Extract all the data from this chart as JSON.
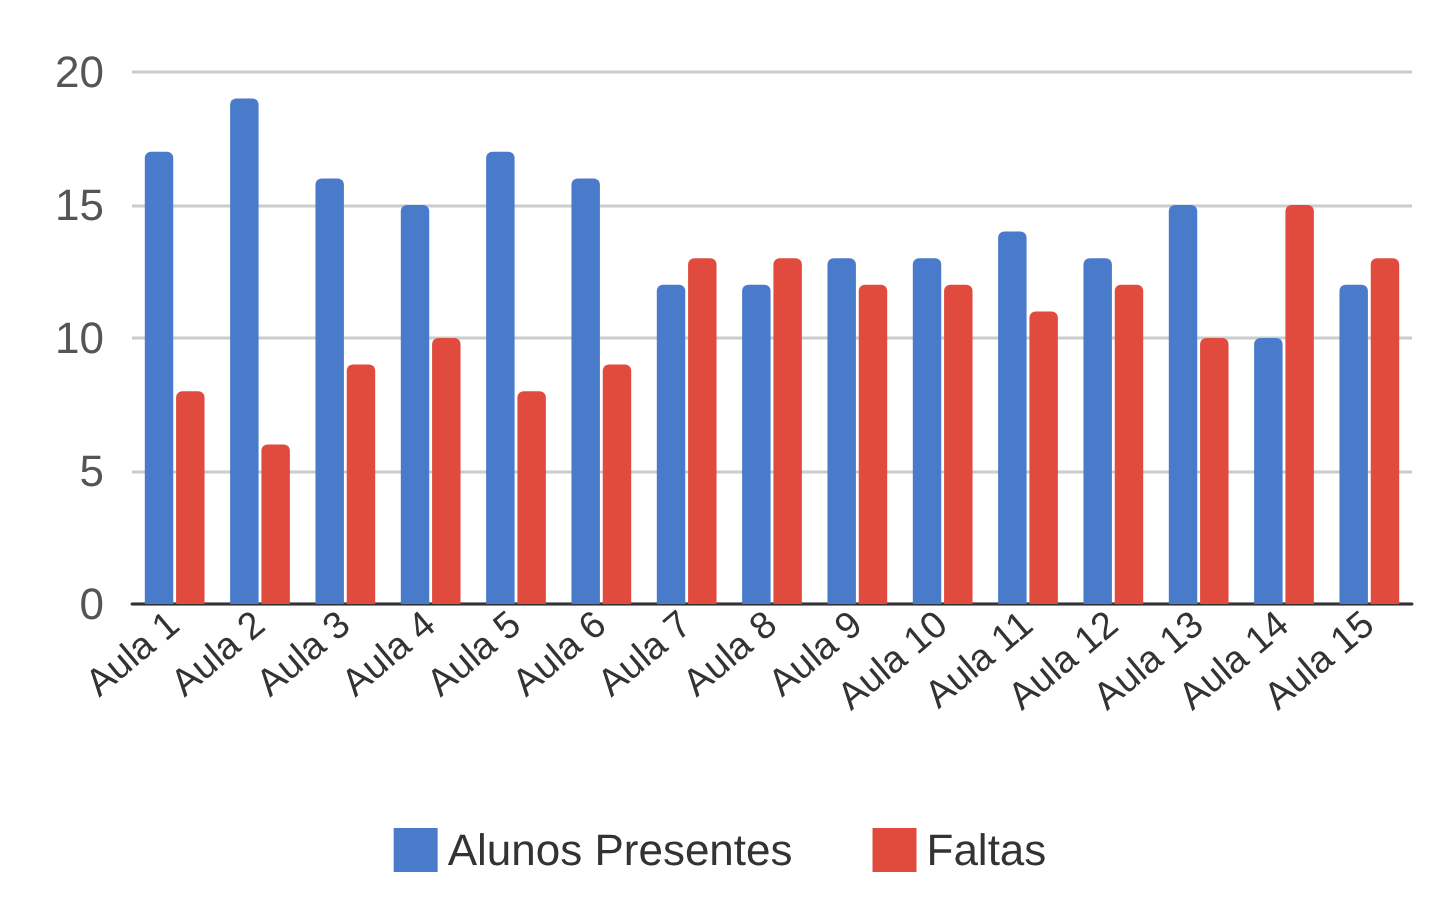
{
  "chart_data": {
    "type": "bar",
    "categories": [
      "Aula 1",
      "Aula 2",
      "Aula 3",
      "Aula 4",
      "Aula 5",
      "Aula 6",
      "Aula 7",
      "Aula 8",
      "Aula 9",
      "Aula 10",
      "Aula 11",
      "Aula 12",
      "Aula 13",
      "Aula 14",
      "Aula 15"
    ],
    "series": [
      {
        "name": "Alunos Presentes",
        "color": "#4a7bcb",
        "values": [
          17,
          19,
          16,
          15,
          17,
          16,
          12,
          12,
          13,
          13,
          14,
          13,
          15,
          10,
          12
        ]
      },
      {
        "name": "Faltas",
        "color": "#e14b3e",
        "values": [
          8,
          6,
          9,
          10,
          8,
          9,
          13,
          13,
          12,
          12,
          11,
          12,
          10,
          15,
          13
        ]
      }
    ],
    "ylim": [
      0,
      20
    ],
    "yticks": [
      0,
      5,
      10,
      15,
      20
    ],
    "grid": "y",
    "legend": "bottom"
  }
}
